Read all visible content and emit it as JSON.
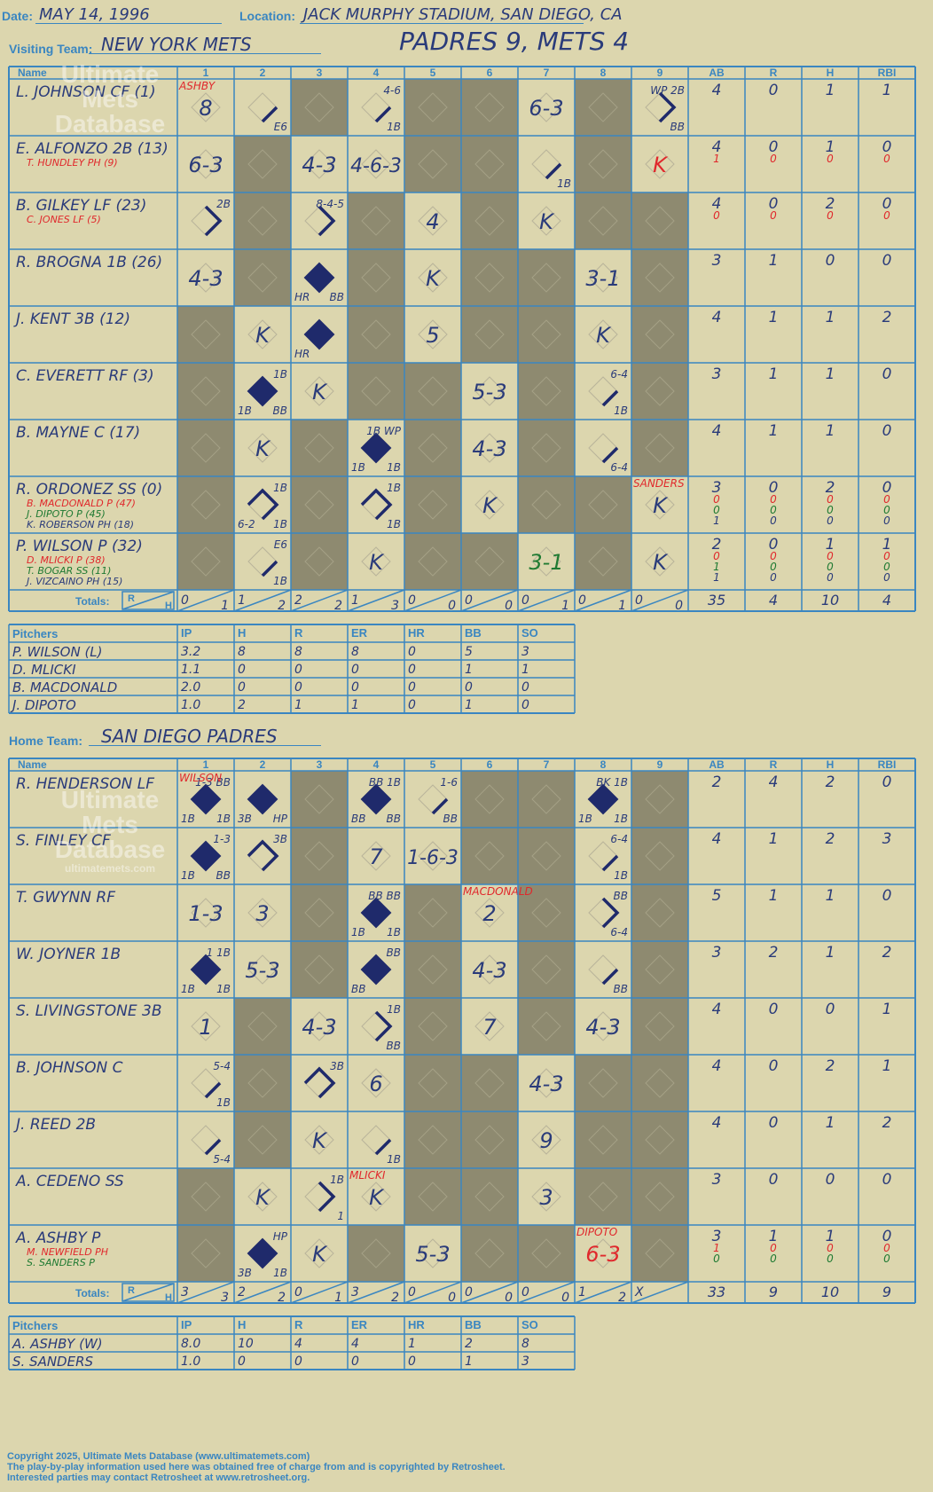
{
  "header": {
    "date_label": "Date:",
    "date": "MAY 14, 1996",
    "location_label": "Location:",
    "location": "JACK MURPHY STADIUM, SAN DIEGO, CA",
    "visiting_label": "Visiting Team:",
    "visiting_team": "NEW YORK METS",
    "score_title": "PADRES 9, METS 4",
    "home_label": "Home Team:",
    "home_team": "SAN DIEGO PADRES"
  },
  "columns": {
    "name": "Name",
    "innings": [
      "1",
      "2",
      "3",
      "4",
      "5",
      "6",
      "7",
      "8",
      "9"
    ],
    "stats": [
      "AB",
      "R",
      "H",
      "RBI"
    ],
    "totals": "Totals:",
    "rh_r": "R",
    "rh_h": "H",
    "pitchers": "Pitchers",
    "pitch_cols": [
      "IP",
      "H",
      "R",
      "ER",
      "HR",
      "BB",
      "SO"
    ]
  },
  "watermark": {
    "line1": "Ultimate",
    "line2": "Mets",
    "line3": "Database",
    "line4": "ultimatemets.com"
  },
  "colors": {
    "bg": "#dcd6ae",
    "grid": "#3a86c1",
    "shade": "#8e8a70",
    "ink": "#2a3b7a",
    "red": "#e0282c",
    "green": "#1f7a32"
  },
  "visitors": {
    "batters": [
      {
        "name": "L. JOHNSON CF (1)",
        "subs": [],
        "stats": [
          [
            "4"
          ],
          [
            "0"
          ],
          [
            "1"
          ],
          [
            "1"
          ]
        ],
        "cells": {
          "1": {
            "c": "8",
            "note": "ASHBY"
          },
          "2": {
            "s": "E6",
            "p": "1"
          },
          "4": {
            "t": "4-6",
            "s": "1B",
            "p": "1"
          },
          "7": {
            "c": "6-3"
          },
          "9": {
            "t": "WP 2B",
            "s": "BB",
            "p": "2"
          }
        }
      },
      {
        "name": "E. ALFONZO 2B (13)",
        "subs": [
          {
            "t": "T. HUNDLEY PH (9)",
            "c": "red"
          }
        ],
        "stats": [
          [
            "4",
            "1"
          ],
          [
            "0",
            "0"
          ],
          [
            "1",
            "0"
          ],
          [
            "0",
            "0"
          ]
        ],
        "cells": {
          "1": {
            "c": "6-3"
          },
          "3": {
            "c": "4-3"
          },
          "4": {
            "c": "4-6-3"
          },
          "7": {
            "s": "1B",
            "p": "1"
          },
          "9": {
            "c": "K",
            "cc": "red"
          }
        }
      },
      {
        "name": "B. GILKEY LF (23)",
        "subs": [
          {
            "t": "C. JONES LF (5)",
            "c": "red"
          }
        ],
        "stats": [
          [
            "4",
            "0"
          ],
          [
            "0",
            "0"
          ],
          [
            "2",
            "0"
          ],
          [
            "0",
            "0"
          ]
        ],
        "cells": {
          "1": {
            "t": "2B",
            "p": "2"
          },
          "3": {
            "t": "8-4-5",
            "p": "2"
          },
          "5": {
            "c": "4"
          },
          "7": {
            "c": "K"
          }
        }
      },
      {
        "name": "R. BROGNA 1B (26)",
        "subs": [],
        "stats": [
          [
            "3"
          ],
          [
            "1"
          ],
          [
            "0"
          ],
          [
            "0"
          ]
        ],
        "cells": {
          "1": {
            "c": "4-3"
          },
          "3": {
            "sl": "HR",
            "s": "BB",
            "p": "4"
          },
          "5": {
            "c": "K"
          },
          "8": {
            "c": "3-1"
          }
        }
      },
      {
        "name": "J. KENT 3B (12)",
        "subs": [],
        "stats": [
          [
            "4"
          ],
          [
            "1"
          ],
          [
            "1"
          ],
          [
            "2"
          ]
        ],
        "cells": {
          "2": {
            "c": "K"
          },
          "3": {
            "sl": "HR",
            "p": "4"
          },
          "5": {
            "c": "5"
          },
          "8": {
            "c": "K"
          }
        }
      },
      {
        "name": "C. EVERETT RF (3)",
        "subs": [],
        "stats": [
          [
            "3"
          ],
          [
            "1"
          ],
          [
            "1"
          ],
          [
            "0"
          ]
        ],
        "cells": {
          "2": {
            "t": "1B",
            "sl": "1B",
            "s": "BB",
            "p": "4"
          },
          "3": {
            "c": "K"
          },
          "6": {
            "c": "5-3"
          },
          "8": {
            "t": "6-4",
            "s": "1B",
            "p": "1"
          }
        }
      },
      {
        "name": "B. MAYNE C (17)",
        "subs": [],
        "stats": [
          [
            "4"
          ],
          [
            "1"
          ],
          [
            "1"
          ],
          [
            "0"
          ]
        ],
        "cells": {
          "2": {
            "c": "K"
          },
          "4": {
            "t": "1B WP",
            "sl": "1B",
            "s": "1B",
            "p": "4"
          },
          "6": {
            "c": "4-3"
          },
          "8": {
            "s": "6-4",
            "p": "1"
          }
        }
      },
      {
        "name": "R. ORDONEZ SS (0)",
        "subs": [
          {
            "t": "B. MACDONALD P (47)",
            "c": "red"
          },
          {
            "t": "J. DIPOTO P (45)",
            "c": "green"
          },
          {
            "t": "K. ROBERSON PH (18)",
            "c": "ink"
          }
        ],
        "stats": [
          [
            "3",
            "0",
            "0",
            "1"
          ],
          [
            "0",
            "0",
            "0",
            "0"
          ],
          [
            "2",
            "0",
            "0",
            "0"
          ],
          [
            "0",
            "0",
            "0",
            "0"
          ]
        ],
        "cells": {
          "2": {
            "t": "1B",
            "sl": "6-2",
            "s": "1B",
            "p": "3"
          },
          "4": {
            "t": "1B",
            "s": "1B",
            "p": "3"
          },
          "6": {
            "c": "K"
          },
          "9": {
            "c": "K",
            "note": "SANDERS"
          }
        }
      },
      {
        "name": "P. WILSON P (32)",
        "subs": [
          {
            "t": "D. MLICKI P (38)",
            "c": "red"
          },
          {
            "t": "T. BOGAR SS (11)",
            "c": "green"
          },
          {
            "t": "J. VIZCAINO PH (15)",
            "c": "ink"
          }
        ],
        "stats": [
          [
            "2",
            "0",
            "1",
            "1"
          ],
          [
            "0",
            "0",
            "0",
            "0"
          ],
          [
            "1",
            "0",
            "0",
            "0"
          ],
          [
            "1",
            "0",
            "0",
            "0"
          ]
        ],
        "cells": {
          "2": {
            "t": "E6",
            "s": "1B",
            "p": "1"
          },
          "4": {
            "c": "K"
          },
          "7": {
            "c": "3-1",
            "cc": "green"
          },
          "9": {
            "c": "K"
          }
        }
      }
    ],
    "totals": [
      [
        "0",
        "1"
      ],
      [
        "1",
        "2"
      ],
      [
        "2",
        "2"
      ],
      [
        "1",
        "3"
      ],
      [
        "0",
        "0"
      ],
      [
        "0",
        "0"
      ],
      [
        "0",
        "1"
      ],
      [
        "0",
        "1"
      ],
      [
        "0",
        "0"
      ]
    ],
    "total_stats": [
      "35",
      "4",
      "10",
      "4"
    ],
    "pitchers": [
      {
        "name": "P. WILSON (L)",
        "v": [
          "3.2",
          "8",
          "8",
          "8",
          "0",
          "5",
          "3"
        ]
      },
      {
        "name": "D. MLICKI",
        "v": [
          "1.1",
          "0",
          "0",
          "0",
          "0",
          "1",
          "1"
        ]
      },
      {
        "name": "B. MACDONALD",
        "v": [
          "2.0",
          "0",
          "0",
          "0",
          "0",
          "0",
          "0"
        ]
      },
      {
        "name": "J. DIPOTO",
        "v": [
          "1.0",
          "2",
          "1",
          "1",
          "0",
          "1",
          "0"
        ]
      }
    ]
  },
  "home": {
    "batters": [
      {
        "name": "R. HENDERSON LF",
        "subs": [],
        "stats": [
          [
            "2"
          ],
          [
            "4"
          ],
          [
            "2"
          ],
          [
            "0"
          ]
        ],
        "cells": {
          "1": {
            "t": "1-3 BB",
            "sl": "1B",
            "s": "1B",
            "p": "4",
            "note": "WILSON"
          },
          "2": {
            "sl": "3B",
            "s": "HP",
            "p": "4"
          },
          "4": {
            "t": "BB 1B",
            "sl": "BB",
            "s": "BB",
            "p": "4"
          },
          "5": {
            "t": "1-6",
            "s": "BB",
            "p": "1"
          },
          "8": {
            "t": "BK 1B",
            "sl": "1B",
            "s": "1B",
            "p": "4"
          }
        }
      },
      {
        "name": "S. FINLEY CF",
        "subs": [],
        "stats": [
          [
            "4"
          ],
          [
            "1"
          ],
          [
            "2"
          ],
          [
            "3"
          ]
        ],
        "cells": {
          "1": {
            "t": "1-3",
            "sl": "1B",
            "s": "BB",
            "p": "4"
          },
          "2": {
            "t": "3B",
            "p": "3"
          },
          "4": {
            "c": "7"
          },
          "5": {
            "c": "1-6-3"
          },
          "8": {
            "t": "6-4",
            "s": "1B",
            "p": "1"
          }
        }
      },
      {
        "name": "T. GWYNN RF",
        "subs": [],
        "stats": [
          [
            "5"
          ],
          [
            "1"
          ],
          [
            "1"
          ],
          [
            "0"
          ]
        ],
        "cells": {
          "1": {
            "c": "1-3"
          },
          "2": {
            "c": "3"
          },
          "4": {
            "t": "BB BB",
            "sl": "1B",
            "s": "1B",
            "p": "4"
          },
          "6": {
            "c": "2",
            "note": "MACDONALD"
          },
          "8": {
            "t": "BB",
            "s": "6-4",
            "p": "2"
          }
        }
      },
      {
        "name": "W. JOYNER 1B",
        "subs": [],
        "stats": [
          [
            "3"
          ],
          [
            "2"
          ],
          [
            "1"
          ],
          [
            "2"
          ]
        ],
        "cells": {
          "1": {
            "t": "1 1B",
            "sl": "1B",
            "s": "1B",
            "p": "4"
          },
          "2": {
            "c": "5-3"
          },
          "4": {
            "t": "BB",
            "sl": "BB",
            "p": "4"
          },
          "6": {
            "c": "4-3"
          },
          "8": {
            "s": "BB",
            "p": "1"
          }
        }
      },
      {
        "name": "S. LIVINGSTONE 3B",
        "subs": [],
        "stats": [
          [
            "4"
          ],
          [
            "0"
          ],
          [
            "0"
          ],
          [
            "1"
          ]
        ],
        "cells": {
          "1": {
            "c": "1"
          },
          "3": {
            "c": "4-3"
          },
          "4": {
            "t": "1B",
            "s": "BB",
            "p": "2"
          },
          "6": {
            "c": "7"
          },
          "8": {
            "c": "4-3"
          }
        }
      },
      {
        "name": "B. JOHNSON C",
        "subs": [],
        "stats": [
          [
            "4"
          ],
          [
            "0"
          ],
          [
            "2"
          ],
          [
            "1"
          ]
        ],
        "cells": {
          "1": {
            "t": "5-4",
            "s": "1B",
            "p": "1"
          },
          "3": {
            "t": "3B",
            "p": "3"
          },
          "4": {
            "c": "6"
          },
          "7": {
            "c": "4-3"
          }
        }
      },
      {
        "name": "J. REED 2B",
        "subs": [],
        "stats": [
          [
            "4"
          ],
          [
            "0"
          ],
          [
            "1"
          ],
          [
            "2"
          ]
        ],
        "cells": {
          "1": {
            "s": "5-4",
            "p": "1"
          },
          "3": {
            "c": "K"
          },
          "4": {
            "s": "1B",
            "p": "1"
          },
          "7": {
            "c": "9"
          }
        }
      },
      {
        "name": "A. CEDENO SS",
        "subs": [],
        "stats": [
          [
            "3"
          ],
          [
            "0"
          ],
          [
            "0"
          ],
          [
            "0"
          ]
        ],
        "cells": {
          "2": {
            "c": "K"
          },
          "3": {
            "t": "1B",
            "s": "1",
            "p": "2"
          },
          "4": {
            "c": "K",
            "note": "MLICKI"
          },
          "7": {
            "c": "3"
          }
        }
      },
      {
        "name": "A. ASHBY P",
        "subs": [
          {
            "t": "M. NEWFIELD PH",
            "c": "red"
          },
          {
            "t": "S. SANDERS P",
            "c": "green"
          }
        ],
        "stats": [
          [
            "3",
            "1",
            "0"
          ],
          [
            "1",
            "0",
            "0"
          ],
          [
            "1",
            "0",
            "0"
          ],
          [
            "0",
            "0",
            "0"
          ]
        ],
        "cells": {
          "2": {
            "t": "HP",
            "sl": "3B",
            "s": "1B",
            "p": "4"
          },
          "3": {
            "c": "K"
          },
          "5": {
            "c": "5-3"
          },
          "8": {
            "c": "6-3",
            "cc": "red",
            "note": "DIPOTO"
          }
        }
      }
    ],
    "totals": [
      [
        "3",
        "3"
      ],
      [
        "2",
        "2"
      ],
      [
        "0",
        "1"
      ],
      [
        "3",
        "2"
      ],
      [
        "0",
        "0"
      ],
      [
        "0",
        "0"
      ],
      [
        "0",
        "0"
      ],
      [
        "1",
        "2"
      ],
      [
        "X",
        ""
      ]
    ],
    "total_stats": [
      "33",
      "9",
      "10",
      "9"
    ],
    "pitchers": [
      {
        "name": "A. ASHBY (W)",
        "v": [
          "8.0",
          "10",
          "4",
          "4",
          "1",
          "2",
          "8"
        ]
      },
      {
        "name": "S. SANDERS",
        "v": [
          "1.0",
          "0",
          "0",
          "0",
          "0",
          "1",
          "3"
        ]
      }
    ]
  },
  "copyright": {
    "line1": "Copyright 2025, Ultimate Mets Database (www.ultimatemets.com)",
    "line2": "The play-by-play information used here was obtained free of charge from and is copyrighted by Retrosheet.",
    "line3": "Interested parties may contact Retrosheet at www.retrosheet.org."
  }
}
